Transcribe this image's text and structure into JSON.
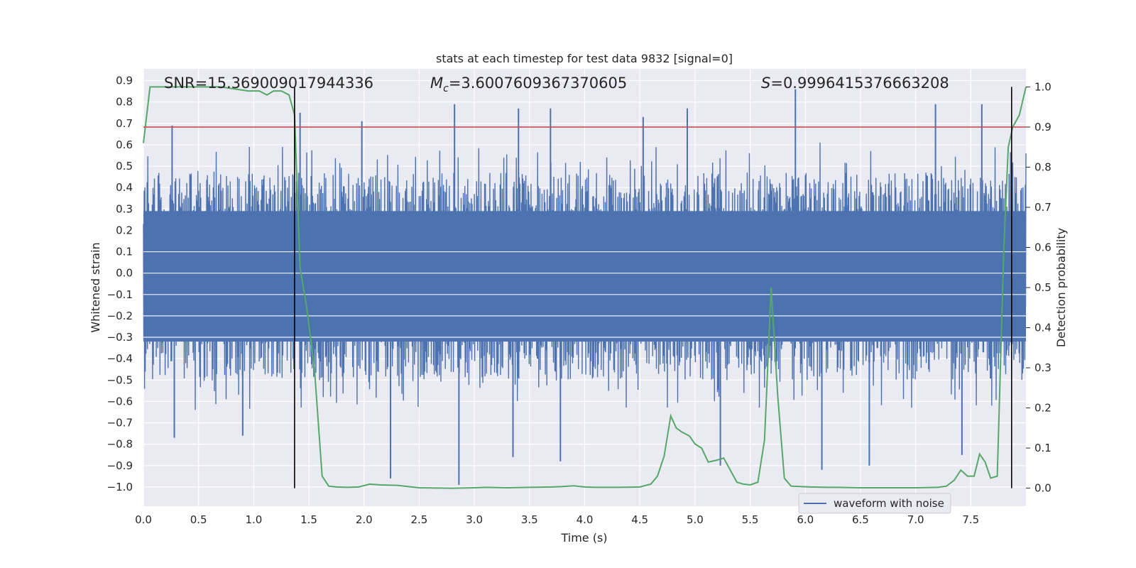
{
  "chart_data": {
    "type": "line",
    "title": "stats at each timestep for test data 9832 [signal=0]",
    "xlabel": "Time (s)",
    "ylabel": "Whitened strain",
    "y2label": "Detection probability",
    "xlim": [
      0.0,
      8.0
    ],
    "ylim": [
      -1.09,
      0.955
    ],
    "y2lim": [
      -0.045,
      1.045
    ],
    "xticks": [
      "0.0",
      "0.5",
      "1.0",
      "1.5",
      "2.0",
      "2.5",
      "3.0",
      "3.5",
      "4.0",
      "4.5",
      "5.0",
      "5.5",
      "6.0",
      "6.5",
      "7.0",
      "7.5"
    ],
    "yticks": [
      "0.9",
      "0.8",
      "0.7",
      "0.6",
      "0.5",
      "0.4",
      "0.3",
      "0.2",
      "0.1",
      "0.0",
      "−0.1",
      "−0.2",
      "−0.3",
      "−0.4",
      "−0.5",
      "−0.6",
      "−0.7",
      "−0.8",
      "−0.9",
      "−1.0"
    ],
    "y2ticks": [
      "0.0",
      "0.1",
      "0.2",
      "0.3",
      "0.4",
      "0.5",
      "0.6",
      "0.7",
      "0.8",
      "0.9",
      "1.0"
    ],
    "grid": true,
    "legend": {
      "location": "lower-right",
      "entries": [
        "waveform with noise"
      ]
    },
    "annotations": {
      "snr": "SNR=15.369009017944336",
      "mc_symbol": "M",
      "mc_sub": "c",
      "mc_value": "=3.6007609367370605",
      "s_symbol": "S",
      "s_value": "=0.9996415376663208"
    },
    "threshold": {
      "axis": "right",
      "value": 0.9,
      "color": "#c44e52"
    },
    "vertical_markers": [
      1.37,
      7.87
    ],
    "waveform_envelope": {
      "name": "waveform with noise",
      "color": "#4c72b0",
      "typical_upper": 0.45,
      "typical_lower": -0.48,
      "peaks_upper": [
        {
          "t": 0.26,
          "v": 0.69
        },
        {
          "t": 1.42,
          "v": 0.75
        },
        {
          "t": 1.98,
          "v": 0.71
        },
        {
          "t": 2.82,
          "v": 0.79
        },
        {
          "t": 3.4,
          "v": 0.77
        },
        {
          "t": 3.69,
          "v": 0.77
        },
        {
          "t": 4.53,
          "v": 0.73
        },
        {
          "t": 4.93,
          "v": 0.77
        },
        {
          "t": 5.91,
          "v": 0.86
        },
        {
          "t": 7.18,
          "v": 0.79
        },
        {
          "t": 7.6,
          "v": 0.79
        }
      ],
      "peaks_lower": [
        {
          "t": 0.28,
          "v": -0.77
        },
        {
          "t": 0.9,
          "v": -0.76
        },
        {
          "t": 2.24,
          "v": -0.96
        },
        {
          "t": 2.86,
          "v": -0.99
        },
        {
          "t": 3.35,
          "v": -0.86
        },
        {
          "t": 3.78,
          "v": -0.88
        },
        {
          "t": 5.23,
          "v": -0.9
        },
        {
          "t": 6.15,
          "v": -0.92
        },
        {
          "t": 6.58,
          "v": -0.9
        },
        {
          "t": 7.42,
          "v": -0.85
        }
      ]
    },
    "detection_probability": {
      "color": "#55a868",
      "axis": "right",
      "x": [
        0.0,
        0.06,
        0.1,
        0.2,
        0.4,
        0.7,
        0.95,
        1.05,
        1.12,
        1.18,
        1.25,
        1.32,
        1.37,
        1.42,
        1.48,
        1.55,
        1.62,
        1.68,
        1.75,
        1.85,
        1.95,
        2.05,
        2.15,
        2.3,
        2.5,
        2.8,
        3.0,
        3.1,
        3.3,
        3.5,
        3.7,
        3.8,
        3.9,
        4.0,
        4.1,
        4.3,
        4.5,
        4.6,
        4.66,
        4.72,
        4.78,
        4.83,
        4.88,
        4.95,
        5.0,
        5.06,
        5.12,
        5.2,
        5.26,
        5.32,
        5.38,
        5.44,
        5.5,
        5.57,
        5.63,
        5.69,
        5.75,
        5.81,
        5.87,
        5.95,
        6.05,
        6.2,
        6.3,
        6.5,
        6.8,
        7.0,
        7.2,
        7.28,
        7.35,
        7.41,
        7.47,
        7.53,
        7.58,
        7.63,
        7.68,
        7.74,
        7.8,
        7.84,
        7.88,
        7.94,
        8.0
      ],
      "values": [
        0.86,
        1.0,
        1.0,
        1.0,
        1.0,
        1.0,
        0.99,
        0.99,
        0.98,
        0.99,
        0.99,
        0.98,
        0.93,
        0.55,
        0.45,
        0.3,
        0.03,
        0.005,
        0.003,
        0.002,
        0.003,
        0.01,
        0.008,
        0.007,
        0.001,
        0.0,
        0.001,
        0.002,
        0.001,
        0.002,
        0.003,
        0.004,
        0.006,
        0.003,
        0.002,
        0.002,
        0.003,
        0.01,
        0.03,
        0.08,
        0.18,
        0.15,
        0.14,
        0.13,
        0.11,
        0.1,
        0.065,
        0.07,
        0.075,
        0.045,
        0.015,
        0.01,
        0.008,
        0.015,
        0.12,
        0.5,
        0.23,
        0.025,
        0.005,
        0.004,
        0.003,
        0.002,
        0.002,
        0.001,
        0.001,
        0.001,
        0.002,
        0.005,
        0.02,
        0.045,
        0.03,
        0.03,
        0.085,
        0.065,
        0.025,
        0.03,
        0.6,
        0.85,
        0.9,
        0.93,
        1.0
      ]
    }
  }
}
